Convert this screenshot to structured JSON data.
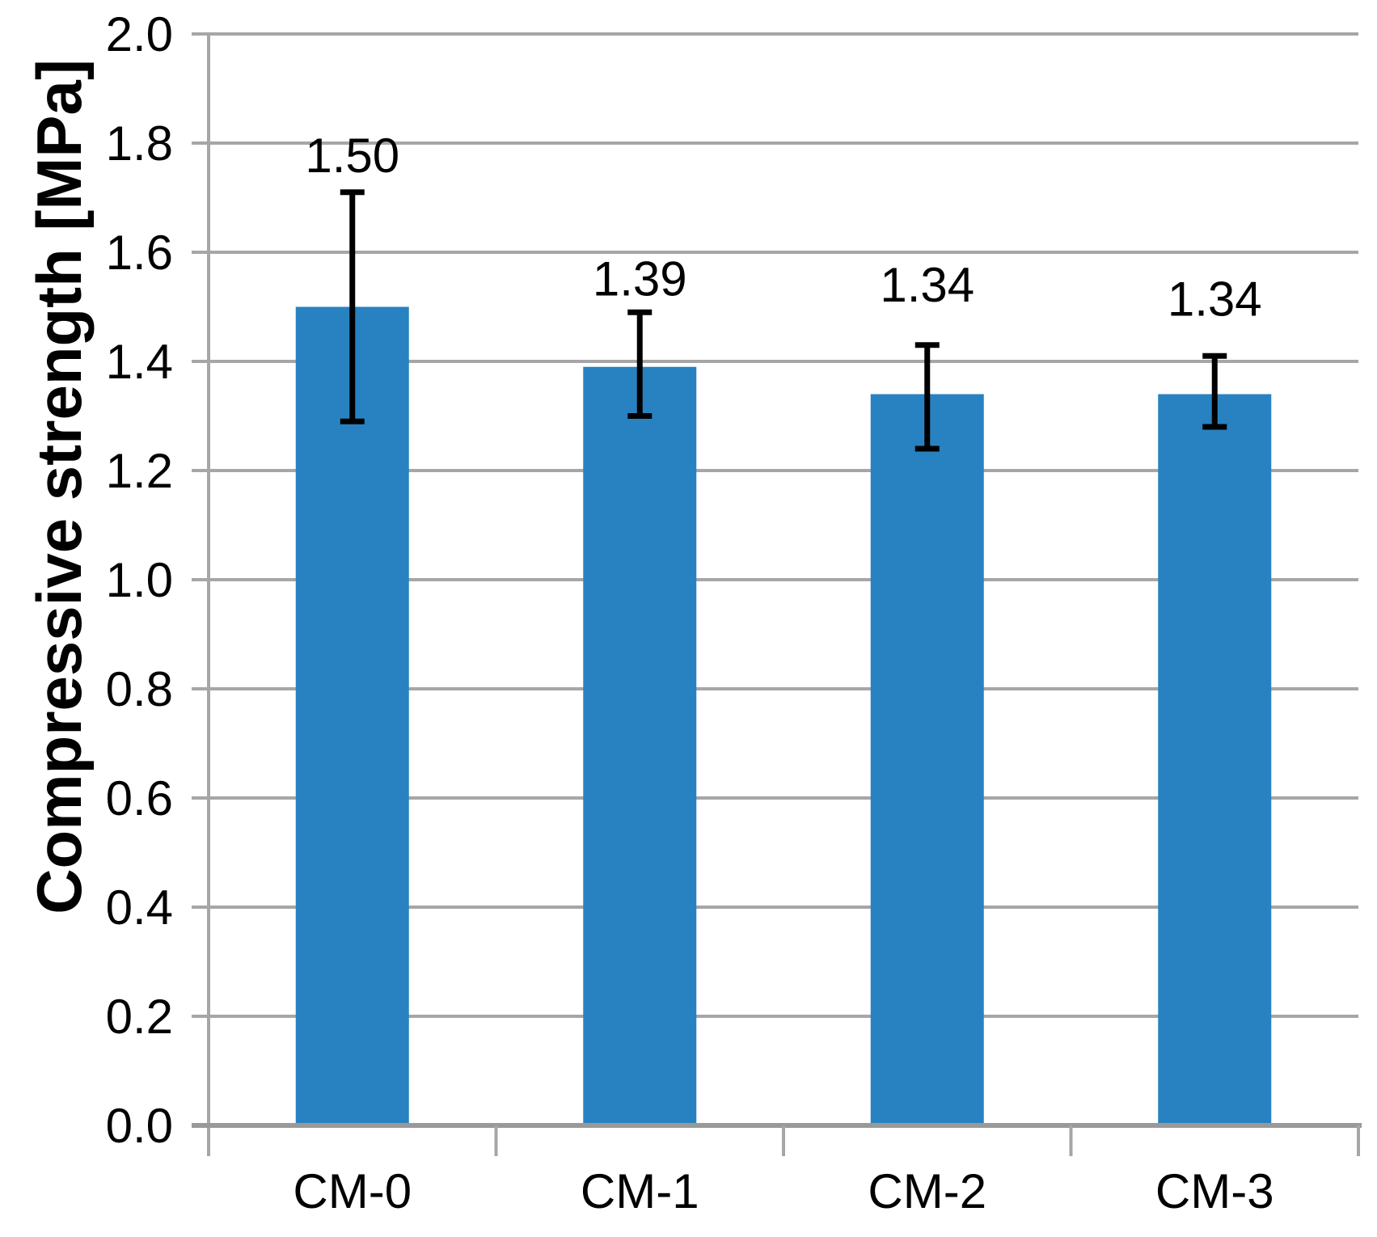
{
  "figure": {
    "background": "#ffffff"
  },
  "chart_data": {
    "type": "bar",
    "title": "",
    "categories": [
      "CM-0",
      "CM-1",
      "CM-2",
      "CM-3"
    ],
    "values": [
      1.5,
      1.39,
      1.34,
      1.34
    ],
    "data_labels": [
      "1.50",
      "1.39",
      "1.34",
      "1.34"
    ],
    "error_plus": [
      0.21,
      0.1,
      0.09,
      0.07
    ],
    "error_minus": [
      0.21,
      0.09,
      0.1,
      0.06
    ],
    "xlabel": "",
    "ylabel": "Compressive strength [MPa]",
    "ylim": [
      0.0,
      2.0
    ],
    "ytick_step": 0.2,
    "ytick_labels": [
      "0.0",
      "0.2",
      "0.4",
      "0.6",
      "0.8",
      "1.0",
      "1.2",
      "1.4",
      "1.6",
      "1.8",
      "2.0"
    ],
    "grid": "horizontal-only",
    "legend": "none",
    "colors": {
      "bar": "#2882c1",
      "gridline": "#a6a6a6",
      "axis": "#999999",
      "error_bar": "#000000",
      "text": "#000000"
    }
  }
}
